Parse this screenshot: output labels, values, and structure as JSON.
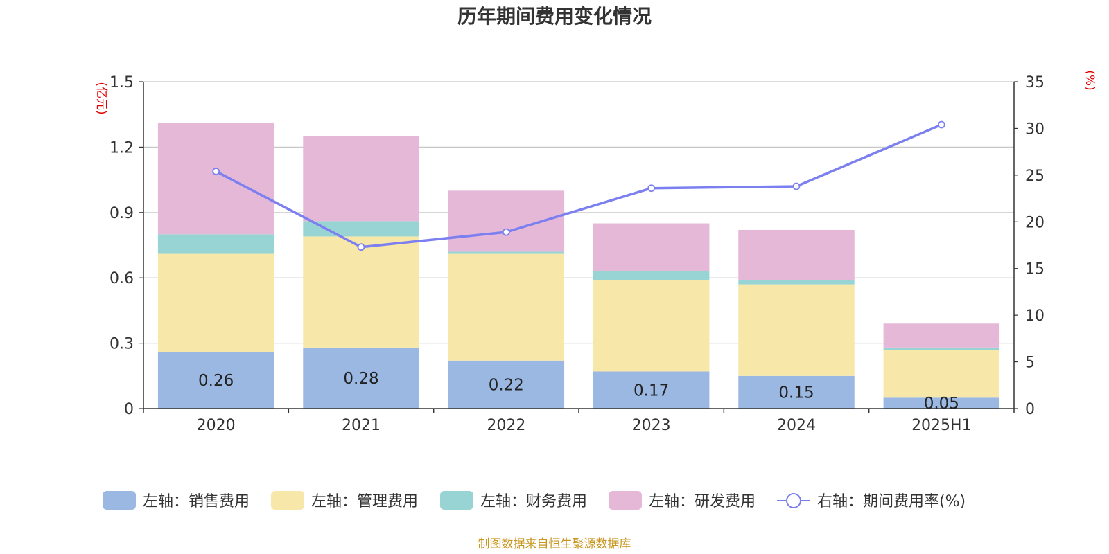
{
  "chart_data": {
    "type": "bar",
    "title": "历年期间费用变化情况",
    "categories": [
      "2020",
      "2021",
      "2022",
      "2023",
      "2024",
      "2025H1"
    ],
    "left_axis": {
      "unit": "(亿元)",
      "ylim": [
        0,
        1.5
      ],
      "ticks": [
        "0",
        "0.3",
        "0.6",
        "0.9",
        "1.2",
        "1.5"
      ]
    },
    "right_axis": {
      "unit": "(%)",
      "ylim": [
        0,
        35
      ],
      "ticks": [
        "0",
        "5",
        "10",
        "15",
        "20",
        "25",
        "30",
        "35"
      ]
    },
    "series": [
      {
        "name": "左轴：销售费用",
        "axis": "left",
        "kind": "bar",
        "color": "#9bb8e2",
        "values": [
          0.26,
          0.28,
          0.22,
          0.17,
          0.15,
          0.05
        ],
        "labels": [
          "0.26",
          "0.28",
          "0.22",
          "0.17",
          "0.15",
          "0.05"
        ]
      },
      {
        "name": "左轴：管理费用",
        "axis": "left",
        "kind": "bar",
        "color": "#f7e7a9",
        "values": [
          0.45,
          0.51,
          0.49,
          0.42,
          0.42,
          0.22
        ]
      },
      {
        "name": "左轴：财务费用",
        "axis": "left",
        "kind": "bar",
        "color": "#98d4d4",
        "values": [
          0.09,
          0.07,
          0.01,
          0.04,
          0.02,
          0.01
        ]
      },
      {
        "name": "左轴：研发费用",
        "axis": "left",
        "kind": "bar",
        "color": "#e6b8d8",
        "values": [
          0.51,
          0.39,
          0.28,
          0.22,
          0.23,
          0.11
        ]
      },
      {
        "name": "右轴：期间费用率(%)",
        "axis": "right",
        "kind": "line",
        "color": "#7b7fef",
        "values": [
          25.4,
          17.3,
          18.9,
          23.6,
          23.8,
          30.4
        ]
      }
    ],
    "grid": true,
    "legend_position": "bottom"
  },
  "footer": {
    "source": "制图数据来自恒生聚源数据库"
  }
}
